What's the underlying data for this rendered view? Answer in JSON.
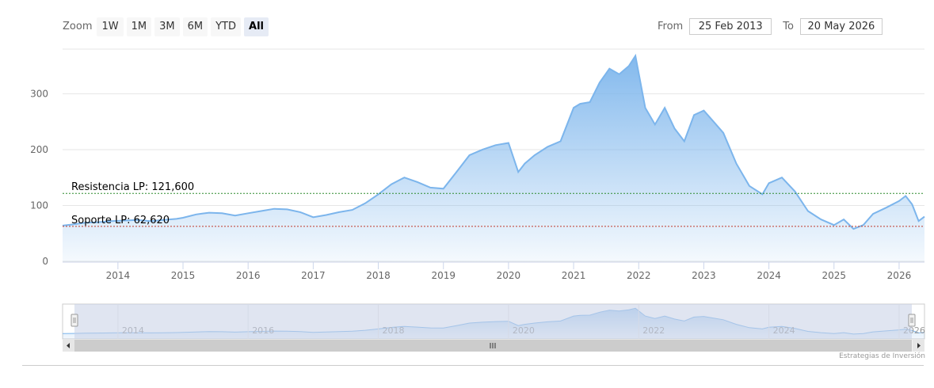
{
  "zoom": {
    "label": "Zoom",
    "buttons": [
      "1W",
      "1M",
      "3M",
      "6M",
      "YTD",
      "All"
    ],
    "active": "All"
  },
  "range": {
    "from_label": "From",
    "from_value": "25 Feb 2013",
    "to_label": "To",
    "to_value": "20 May 2026"
  },
  "credit": "Estrategias de Inversión",
  "colors": {
    "series_line": "#7cb5ec",
    "resistance": "#2e8b2e",
    "support": "#c0392b",
    "navigator_mask": "#c6cfe6"
  },
  "chart_data": {
    "type": "area",
    "title": "",
    "xlabel": "",
    "ylabel": "",
    "ylim": [
      0,
      380
    ],
    "yticks": [
      0,
      100,
      200,
      300
    ],
    "xlim": [
      2013.15,
      2026.39
    ],
    "xticks": [
      "2014",
      "2015",
      "2016",
      "2017",
      "2018",
      "2019",
      "2020",
      "2021",
      "2022",
      "2023",
      "2024",
      "2025",
      "2026"
    ],
    "navigator_ticks": [
      "2014",
      "2016",
      "2018",
      "2020",
      "2022",
      "2024",
      "2026"
    ],
    "grid": true,
    "series": [
      {
        "x": [
          2013.15,
          2013.3,
          2013.5,
          2013.7,
          2013.9,
          2014.1,
          2014.3,
          2014.5,
          2014.7,
          2014.9,
          2015.0,
          2015.2,
          2015.4,
          2015.6,
          2015.8,
          2016.0,
          2016.2,
          2016.4,
          2016.6,
          2016.8,
          2017.0,
          2017.2,
          2017.4,
          2017.6,
          2017.8,
          2018.0,
          2018.2,
          2018.4,
          2018.6,
          2018.8,
          2019.0,
          2019.2,
          2019.4,
          2019.6,
          2019.8,
          2020.0,
          2020.15,
          2020.25,
          2020.4,
          2020.6,
          2020.8,
          2021.0,
          2021.1,
          2021.25,
          2021.4,
          2021.55,
          2021.7,
          2021.85,
          2021.95,
          2022.1,
          2022.25,
          2022.4,
          2022.55,
          2022.7,
          2022.85,
          2023.0,
          2023.15,
          2023.3,
          2023.5,
          2023.7,
          2023.9,
          2024.0,
          2024.2,
          2024.4,
          2024.6,
          2024.8,
          2025.0,
          2025.15,
          2025.3,
          2025.45,
          2025.6,
          2025.8,
          2026.0,
          2026.1,
          2026.2,
          2026.3,
          2026.39
        ],
        "y": [
          64,
          66,
          69,
          70,
          72,
          73,
          74,
          72,
          74,
          76,
          78,
          84,
          87,
          86,
          82,
          86,
          90,
          94,
          93,
          88,
          79,
          83,
          88,
          92,
          104,
          120,
          138,
          150,
          142,
          132,
          130,
          160,
          190,
          200,
          208,
          212,
          160,
          175,
          190,
          205,
          215,
          275,
          282,
          285,
          320,
          345,
          335,
          350,
          368,
          275,
          245,
          275,
          238,
          215,
          262,
          270,
          250,
          230,
          175,
          135,
          120,
          140,
          150,
          125,
          90,
          75,
          65,
          75,
          58,
          65,
          85,
          96,
          108,
          117,
          102,
          72,
          80
        ]
      }
    ],
    "annotations": [
      {
        "label": "Resistencia LP: 121,600",
        "y": 121.6
      },
      {
        "label": "Soporte LP: 62,620",
        "y": 62.62
      }
    ]
  }
}
